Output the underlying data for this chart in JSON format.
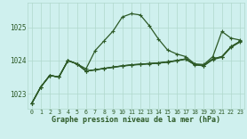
{
  "title": "Graphe pression niveau de la mer (hPa)",
  "bg_color": "#cff0ee",
  "grid_color": "#b0d8cc",
  "line_color": "#2d5a27",
  "xlim": [
    -0.5,
    23.5
  ],
  "ylim": [
    1022.55,
    1025.75
  ],
  "yticks": [
    1023,
    1024,
    1025
  ],
  "xticks": [
    0,
    1,
    2,
    3,
    4,
    5,
    6,
    7,
    8,
    9,
    10,
    11,
    12,
    13,
    14,
    15,
    16,
    17,
    18,
    19,
    20,
    21,
    22,
    23
  ],
  "main_line": [
    1022.7,
    1023.2,
    1023.55,
    1023.5,
    1024.0,
    1023.9,
    1023.75,
    1024.3,
    1024.6,
    1024.9,
    1025.32,
    1025.42,
    1025.38,
    1025.05,
    1024.65,
    1024.32,
    1024.2,
    1024.12,
    1023.9,
    1023.88,
    1024.12,
    1024.88,
    1024.68,
    1024.62
  ],
  "line_a": [
    1022.7,
    1023.2,
    1023.55,
    1023.5,
    1024.0,
    1023.9,
    1023.68,
    1023.72,
    1023.76,
    1023.8,
    1023.84,
    1023.87,
    1023.89,
    1023.91,
    1023.93,
    1023.96,
    1024.0,
    1024.05,
    1023.88,
    1023.85,
    1024.05,
    1024.12,
    1024.42,
    1024.58
  ],
  "line_b": [
    1022.7,
    1023.2,
    1023.55,
    1023.5,
    1024.0,
    1023.9,
    1023.68,
    1023.72,
    1023.76,
    1023.8,
    1023.84,
    1023.87,
    1023.89,
    1023.91,
    1023.93,
    1023.96,
    1024.0,
    1024.05,
    1023.88,
    1023.85,
    1024.05,
    1024.12,
    1024.42,
    1024.58
  ],
  "line_c": [
    1022.7,
    1023.2,
    1023.55,
    1023.5,
    1024.0,
    1023.9,
    1023.68,
    1023.72,
    1023.76,
    1023.8,
    1023.83,
    1023.86,
    1023.88,
    1023.9,
    1023.92,
    1023.95,
    1023.99,
    1024.04,
    1023.87,
    1023.84,
    1024.03,
    1024.1,
    1024.4,
    1024.56
  ]
}
